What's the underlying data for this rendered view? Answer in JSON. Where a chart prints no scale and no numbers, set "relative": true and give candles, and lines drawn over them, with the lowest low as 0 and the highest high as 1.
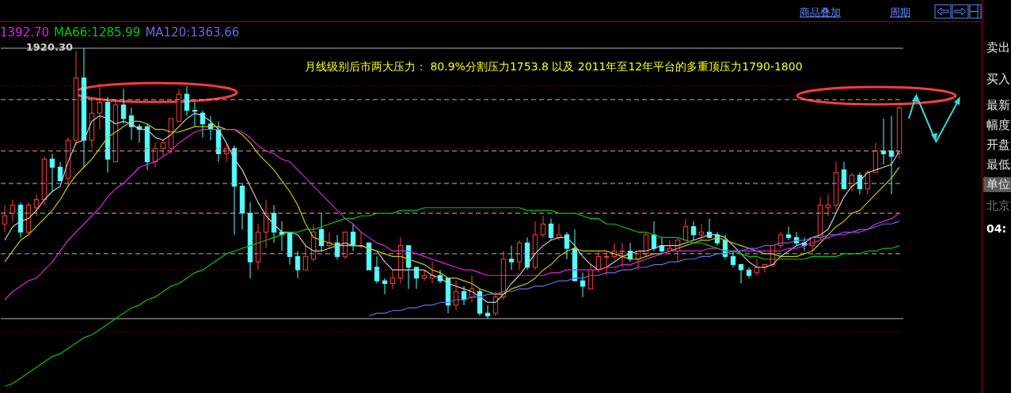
{
  "chart_data": {
    "type": "candlestick",
    "relative": true,
    "tick_labels": false,
    "legend": "top left",
    "colors": [
      "#ff3c3c",
      "#ff3c3c",
      "#54ffff",
      "#ff3c3c",
      "#ff3c3c",
      "#ff3c3c",
      "#54ffff",
      "#54ffff",
      "#ff3c3c",
      "#ff3c3c",
      "#54ffff",
      "#ff3c3c",
      "#ff3c3c",
      "#54ffff",
      "#ff3c3c",
      "#54ffff",
      "#54ffff",
      "#54ffff",
      "#54ffff",
      "#ff3c3c",
      "#ff3c3c",
      "#ff3c3c",
      "#ff3c3c",
      "#54ffff",
      "#54ffff",
      "#54ffff",
      "#54ffff",
      "#54ffff",
      "#ff3c3c",
      "#54ffff",
      "#54ffff",
      "#54ffff",
      "#ff3c3c",
      "#ff3c3c",
      "#54ffff",
      "#54ffff",
      "#54ffff",
      "#54ffff",
      "#ff3c3c",
      "#ff3c3c",
      "#54ffff",
      "#ff3c3c",
      "#54ffff",
      "#ff3c3c",
      "#54ffff",
      "#ff3c3c",
      "#54ffff",
      "#54ffff",
      "#54ffff",
      "#ff3c3c",
      "#ff3c3c",
      "#54ffff",
      "#54ffff",
      "#ff3c3c",
      "#ff3c3c",
      "#54ffff",
      "#54ffff",
      "#ff3c3c",
      "#54ffff",
      "#ff3c3c",
      "#54ffff",
      "#54ffff",
      "#ff3c3c",
      "#ff3c3c",
      "#54ffff",
      "#ff3c3c",
      "#54ffff",
      "#ff3c3c",
      "#ff3c3c",
      "#54ffff",
      "#ff3c3c",
      "#54ffff",
      "#54ffff",
      "#54ffff",
      "#ff3c3c",
      "#ff3c3c",
      "#ff3c3c",
      "#ff3c3c",
      "#ff3c3c",
      "#54ffff",
      "#ff3c3c",
      "#ff3c3c",
      "#54ffff",
      "#54ffff",
      "#ff3c3c",
      "#ff3c3c",
      "#ff3c3c",
      "#54ffff",
      "#ff3c3c",
      "#54ffff",
      "#54ffff",
      "#54ffff",
      "#54ffff",
      "#54ffff",
      "#54ffff",
      "#ff3c3c",
      "#ff3c3c",
      "#ff3c3c",
      "#ff3c3c",
      "#54ffff",
      "#54ffff",
      "#54ffff",
      "#ff3c3c",
      "#ff3c3c",
      "#ff3c3c",
      "#ff3c3c",
      "#54ffff",
      "#ff3c3c",
      "#54ffff",
      "#ff3c3c",
      "#ff3c3c",
      "#54ffff",
      "#54ffff",
      "#ff3c3c"
    ],
    "categories": [
      null,
      null,
      null,
      null,
      null,
      null,
      null,
      null,
      null,
      null,
      null,
      null,
      null,
      null,
      null,
      null,
      null,
      null,
      null,
      null,
      null,
      null,
      null,
      null,
      null,
      null,
      null,
      null,
      null,
      null,
      null,
      null,
      null,
      null,
      null,
      null,
      null,
      null,
      null,
      null,
      null,
      null,
      null,
      null,
      null,
      null,
      null,
      null,
      null,
      null,
      null,
      null,
      null,
      null,
      null,
      null,
      null,
      null,
      null,
      null,
      null,
      null,
      null,
      null,
      null,
      null,
      null,
      null,
      null,
      null,
      null,
      null,
      null,
      null,
      null,
      null,
      null,
      null,
      null,
      null,
      null,
      null,
      null,
      null,
      null,
      null,
      null,
      null,
      null,
      null,
      null,
      null,
      null,
      null,
      null,
      null,
      null,
      null,
      null,
      null,
      null,
      null,
      null,
      null,
      null,
      null,
      null,
      null,
      null,
      null,
      null,
      null,
      null,
      null
    ],
    "ohlc": [
      [
        0.35,
        0.42,
        0.32,
        0.38
      ],
      [
        0.39,
        0.44,
        0.36,
        0.42
      ],
      [
        0.42,
        0.43,
        0.3,
        0.32
      ],
      [
        0.32,
        0.43,
        0.31,
        0.42
      ],
      [
        0.41,
        0.46,
        0.38,
        0.44
      ],
      [
        0.44,
        0.6,
        0.42,
        0.59
      ],
      [
        0.59,
        0.61,
        0.47,
        0.56
      ],
      [
        0.56,
        0.58,
        0.51,
        0.51
      ],
      [
        0.52,
        0.67,
        0.49,
        0.66
      ],
      [
        0.66,
        0.99,
        0.64,
        0.89
      ],
      [
        0.89,
        1,
        0.56,
        0.66
      ],
      [
        0.66,
        0.81,
        0.63,
        0.76
      ],
      [
        0.76,
        0.87,
        0.7,
        0.8
      ],
      [
        0.8,
        0.82,
        0.54,
        0.59
      ],
      [
        0.58,
        0.81,
        0.58,
        0.79
      ],
      [
        0.79,
        0.85,
        0.72,
        0.74
      ],
      [
        0.75,
        0.78,
        0.66,
        0.71
      ],
      [
        0.71,
        0.72,
        0.65,
        0.7
      ],
      [
        0.71,
        0.72,
        0.55,
        0.58
      ],
      [
        0.58,
        0.65,
        0.56,
        0.63
      ],
      [
        0.63,
        0.66,
        0.6,
        0.65
      ],
      [
        0.63,
        0.74,
        0.61,
        0.74
      ],
      [
        0.73,
        0.85,
        0.73,
        0.83
      ],
      [
        0.83,
        0.86,
        0.75,
        0.77
      ],
      [
        0.77,
        0.8,
        0.71,
        0.77
      ],
      [
        0.76,
        0.77,
        0.67,
        0.72
      ],
      [
        0.72,
        0.75,
        0.66,
        0.7
      ],
      [
        0.7,
        0.73,
        0.58,
        0.61
      ],
      [
        0.61,
        0.65,
        0.58,
        0.63
      ],
      [
        0.63,
        0.64,
        0.31,
        0.49
      ],
      [
        0.49,
        0.5,
        0.33,
        0.39
      ],
      [
        0.39,
        0.43,
        0.15,
        0.21
      ],
      [
        0.21,
        0.35,
        0.18,
        0.32
      ],
      [
        0.32,
        0.44,
        0.26,
        0.39
      ],
      [
        0.39,
        0.42,
        0.28,
        0.32
      ],
      [
        0.32,
        0.36,
        0.25,
        0.31
      ],
      [
        0.32,
        0.32,
        0.2,
        0.23
      ],
      [
        0.23,
        0.25,
        0.15,
        0.18
      ],
      [
        0.18,
        0.27,
        0.18,
        0.23
      ],
      [
        0.22,
        0.35,
        0.21,
        0.32
      ],
      [
        0.33,
        0.39,
        0.25,
        0.27
      ],
      [
        0.27,
        0.32,
        0.26,
        0.28
      ],
      [
        0.28,
        0.31,
        0.22,
        0.23
      ],
      [
        0.23,
        0.32,
        0.22,
        0.32
      ],
      [
        0.32,
        0.35,
        0.25,
        0.27
      ],
      [
        0.27,
        0.32,
        0.26,
        0.27
      ],
      [
        0.28,
        0.28,
        0.18,
        0.18
      ],
      [
        0.19,
        0.23,
        0.13,
        0.14
      ],
      [
        0.14,
        0.15,
        0.09,
        0.13
      ],
      [
        0.13,
        0.18,
        0.11,
        0.15
      ],
      [
        0.15,
        0.3,
        0.13,
        0.27
      ],
      [
        0.27,
        0.27,
        0.11,
        0.19
      ],
      [
        0.19,
        0.19,
        0.11,
        0.15
      ],
      [
        0.15,
        0.18,
        0.14,
        0.16
      ],
      [
        0.15,
        0.21,
        0.13,
        0.16
      ],
      [
        0.16,
        0.18,
        0.13,
        0.14
      ],
      [
        0.15,
        0.15,
        0.02,
        0.05
      ],
      [
        0.05,
        0.14,
        0.03,
        0.1
      ],
      [
        0.1,
        0.12,
        0.05,
        0.07
      ],
      [
        0.08,
        0.16,
        0.06,
        0.11
      ],
      [
        0.1,
        0.11,
        0.01,
        0.02
      ],
      [
        0.02,
        0.05,
        0,
        0.01
      ],
      [
        0.02,
        0.1,
        0.01,
        0.08
      ],
      [
        0.08,
        0.25,
        0.07,
        0.22
      ],
      [
        0.22,
        0.27,
        0.18,
        0.21
      ],
      [
        0.21,
        0.29,
        0.18,
        0.28
      ],
      [
        0.28,
        0.3,
        0.18,
        0.19
      ],
      [
        0.19,
        0.36,
        0.18,
        0.31
      ],
      [
        0.31,
        0.38,
        0.3,
        0.35
      ],
      [
        0.35,
        0.37,
        0.29,
        0.3
      ],
      [
        0.3,
        0.35,
        0.29,
        0.31
      ],
      [
        0.31,
        0.32,
        0.22,
        0.26
      ],
      [
        0.26,
        0.33,
        0.14,
        0.14
      ],
      [
        0.14,
        0.17,
        0.08,
        0.12
      ],
      [
        0.11,
        0.2,
        0.11,
        0.18
      ],
      [
        0.18,
        0.25,
        0.17,
        0.23
      ],
      [
        0.23,
        0.25,
        0.16,
        0.23
      ],
      [
        0.23,
        0.28,
        0.22,
        0.25
      ],
      [
        0.25,
        0.28,
        0.19,
        0.25
      ],
      [
        0.25,
        0.28,
        0.21,
        0.22
      ],
      [
        0.22,
        0.25,
        0.18,
        0.25
      ],
      [
        0.24,
        0.32,
        0.23,
        0.31
      ],
      [
        0.31,
        0.36,
        0.25,
        0.26
      ],
      [
        0.27,
        0.3,
        0.24,
        0.25
      ],
      [
        0.25,
        0.29,
        0.25,
        0.26
      ],
      [
        0.25,
        0.3,
        0.21,
        0.29
      ],
      [
        0.29,
        0.37,
        0.29,
        0.34
      ],
      [
        0.34,
        0.36,
        0.29,
        0.31
      ],
      [
        0.31,
        0.35,
        0.29,
        0.32
      ],
      [
        0.32,
        0.37,
        0.3,
        0.3
      ],
      [
        0.31,
        0.32,
        0.27,
        0.28
      ],
      [
        0.29,
        0.31,
        0.22,
        0.23
      ],
      [
        0.23,
        0.25,
        0.19,
        0.2
      ],
      [
        0.2,
        0.2,
        0.13,
        0.18
      ],
      [
        0.18,
        0.19,
        0.15,
        0.16
      ],
      [
        0.17,
        0.22,
        0.16,
        0.19
      ],
      [
        0.19,
        0.2,
        0.17,
        0.2
      ],
      [
        0.2,
        0.27,
        0.19,
        0.27
      ],
      [
        0.27,
        0.32,
        0.26,
        0.31
      ],
      [
        0.31,
        0.34,
        0.29,
        0.3
      ],
      [
        0.3,
        0.32,
        0.27,
        0.28
      ],
      [
        0.28,
        0.3,
        0.25,
        0.27
      ],
      [
        0.27,
        0.3,
        0.25,
        0.3
      ],
      [
        0.3,
        0.45,
        0.29,
        0.42
      ],
      [
        0.41,
        0.46,
        0.38,
        0.42
      ],
      [
        0.42,
        0.58,
        0.4,
        0.54
      ],
      [
        0.55,
        0.58,
        0.48,
        0.48
      ],
      [
        0.49,
        0.54,
        0.47,
        0.53
      ],
      [
        0.53,
        0.54,
        0.46,
        0.48
      ],
      [
        0.48,
        0.55,
        0.46,
        0.54
      ],
      [
        0.54,
        0.65,
        0.54,
        0.62
      ],
      [
        0.62,
        0.74,
        0.57,
        0.61
      ],
      [
        0.62,
        0.75,
        0.46,
        0.6
      ],
      [
        0.61,
        0.8,
        0.59,
        0.78
      ]
    ],
    "series": [
      {
        "type": "line",
        "color": "#c8c8c8",
        "values": [
          0.29,
          0.34,
          0.36,
          0.37,
          0.4,
          0.44,
          0.47,
          0.49,
          0.58,
          0.65,
          0.66,
          0.73,
          0.75,
          0.74,
          0.72,
          0.73,
          0.72,
          0.7,
          0.7,
          0.67,
          0.66,
          0.68,
          0.71,
          0.74,
          0.76,
          0.75,
          0.73,
          0.7,
          0.65,
          0.59,
          0.55,
          0.49,
          0.43,
          0.38,
          0.35,
          0.32,
          0.32,
          0.31,
          0.27,
          0.25,
          0.25,
          0.26,
          0.27,
          0.28,
          0.27,
          0.27,
          0.26,
          0.25,
          0.21,
          0.18,
          0.18,
          0.18,
          0.18,
          0.18,
          0.16,
          0.15,
          0.13,
          0.12,
          0.11,
          0.1,
          0.08,
          0.06,
          0.06,
          0.09,
          0.13,
          0.16,
          0.2,
          0.24,
          0.27,
          0.29,
          0.3,
          0.3,
          0.27,
          0.23,
          0.2,
          0.18,
          0.19,
          0.21,
          0.23,
          0.24,
          0.25,
          0.25,
          0.26,
          0.27,
          0.27,
          0.27,
          0.28,
          0.29,
          0.3,
          0.31,
          0.31,
          0.3,
          0.27,
          0.24,
          0.21,
          0.19,
          0.19,
          0.2,
          0.23,
          0.25,
          0.27,
          0.28,
          0.3,
          0.31,
          0.33,
          0.39,
          0.45,
          0.49,
          0.51,
          0.54,
          0.55,
          0.56,
          0.57,
          0.62
        ]
      },
      {
        "type": "line",
        "color": "#c8c800",
        "values": [
          0.21,
          0.25,
          0.29,
          0.31,
          0.34,
          0.37,
          0.4,
          0.44,
          0.49,
          0.53,
          0.56,
          0.59,
          0.63,
          0.67,
          0.69,
          0.71,
          0.73,
          0.73,
          0.72,
          0.7,
          0.7,
          0.69,
          0.69,
          0.7,
          0.71,
          0.71,
          0.71,
          0.71,
          0.7,
          0.7,
          0.68,
          0.65,
          0.61,
          0.58,
          0.55,
          0.51,
          0.47,
          0.42,
          0.35,
          0.3,
          0.29,
          0.28,
          0.27,
          0.27,
          0.27,
          0.27,
          0.26,
          0.25,
          0.24,
          0.23,
          0.23,
          0.22,
          0.21,
          0.2,
          0.18,
          0.17,
          0.15,
          0.15,
          0.14,
          0.13,
          0.11,
          0.1,
          0.09,
          0.09,
          0.11,
          0.12,
          0.13,
          0.15,
          0.18,
          0.2,
          0.23,
          0.25,
          0.26,
          0.25,
          0.25,
          0.25,
          0.25,
          0.24,
          0.23,
          0.22,
          0.22,
          0.23,
          0.24,
          0.24,
          0.25,
          0.26,
          0.27,
          0.28,
          0.29,
          0.29,
          0.3,
          0.29,
          0.28,
          0.27,
          0.26,
          0.25,
          0.24,
          0.24,
          0.23,
          0.23,
          0.23,
          0.24,
          0.25,
          0.28,
          0.31,
          0.34,
          0.36,
          0.39,
          0.4,
          0.43,
          0.46,
          0.49,
          0.52,
          0.56
        ]
      },
      {
        "type": "line",
        "name": "1392.70",
        "color": "#e020e0",
        "values": [
          0.07,
          0.1,
          0.12,
          0.14,
          0.15,
          0.18,
          0.21,
          0.25,
          0.29,
          0.32,
          0.35,
          0.38,
          0.41,
          0.45,
          0.48,
          0.5,
          0.53,
          0.56,
          0.57,
          0.58,
          0.6,
          0.62,
          0.65,
          0.67,
          0.69,
          0.7,
          0.7,
          0.7,
          0.7,
          0.7,
          0.69,
          0.67,
          0.64,
          0.62,
          0.61,
          0.59,
          0.58,
          0.55,
          0.52,
          0.49,
          0.46,
          0.43,
          0.4,
          0.37,
          0.35,
          0.32,
          0.3,
          0.28,
          0.27,
          0.25,
          0.25,
          0.25,
          0.24,
          0.23,
          0.22,
          0.21,
          0.2,
          0.19,
          0.18,
          0.18,
          0.17,
          0.16,
          0.16,
          0.16,
          0.16,
          0.16,
          0.16,
          0.16,
          0.16,
          0.17,
          0.17,
          0.18,
          0.18,
          0.18,
          0.18,
          0.18,
          0.19,
          0.19,
          0.2,
          0.2,
          0.21,
          0.22,
          0.23,
          0.24,
          0.25,
          0.25,
          0.25,
          0.25,
          0.25,
          0.26,
          0.26,
          0.25,
          0.25,
          0.25,
          0.25,
          0.25,
          0.25,
          0.25,
          0.25,
          0.26,
          0.26,
          0.27,
          0.28,
          0.29,
          0.3,
          0.31,
          0.31,
          0.32,
          0.32,
          0.33,
          0.35,
          0.36,
          0.37,
          0.39
        ]
      },
      {
        "type": "line",
        "name": "MA66:1285.99",
        "color": "#00c800",
        "values": [
          -0.25,
          -0.24,
          -0.22,
          -0.2,
          -0.18,
          -0.16,
          -0.14,
          -0.13,
          -0.11,
          -0.09,
          -0.07,
          -0.06,
          -0.04,
          -0.02,
          0.0,
          0.02,
          0.04,
          0.05,
          0.07,
          0.08,
          0.1,
          0.12,
          0.13,
          0.15,
          0.17,
          0.18,
          0.2,
          0.22,
          0.24,
          0.25,
          0.26,
          0.27,
          0.28,
          0.29,
          0.3,
          0.31,
          0.32,
          0.32,
          0.33,
          0.33,
          0.34,
          0.35,
          0.36,
          0.37,
          0.37,
          0.38,
          0.38,
          0.39,
          0.39,
          0.39,
          0.4,
          0.4,
          0.4,
          0.41,
          0.41,
          0.41,
          0.41,
          0.41,
          0.41,
          0.41,
          0.41,
          0.41,
          0.41,
          0.41,
          0.41,
          0.41,
          0.4,
          0.4,
          0.4,
          0.4,
          0.39,
          0.39,
          0.39,
          0.38,
          0.37,
          0.37,
          0.35,
          0.35,
          0.34,
          0.33,
          0.32,
          0.32,
          0.31,
          0.3,
          0.3,
          0.3,
          0.29,
          0.28,
          0.28,
          0.27,
          0.26,
          0.25,
          0.25,
          0.24,
          0.23,
          0.23,
          0.22,
          0.22,
          0.22,
          0.22,
          0.22,
          0.22,
          0.23,
          0.23,
          0.23,
          0.23,
          0.24,
          0.24,
          0.24,
          0.25,
          0.25,
          0.26,
          0.26,
          0.27
        ]
      },
      {
        "type": "line",
        "name": "MA120:1363.66",
        "color": "#6868e0",
        "values": [
          null,
          null,
          null,
          null,
          null,
          null,
          null,
          null,
          null,
          null,
          null,
          null,
          null,
          null,
          null,
          null,
          null,
          null,
          null,
          null,
          null,
          null,
          null,
          null,
          null,
          null,
          null,
          null,
          null,
          null,
          null,
          null,
          null,
          null,
          null,
          null,
          null,
          null,
          null,
          null,
          null,
          null,
          null,
          null,
          null,
          null,
          0.01,
          0.02,
          0.02,
          0.03,
          0.03,
          0.04,
          0.04,
          0.05,
          0.05,
          0.06,
          0.06,
          0.07,
          0.07,
          0.08,
          0.08,
          0.09,
          0.09,
          0.1,
          0.1,
          0.11,
          0.11,
          0.12,
          0.12,
          0.13,
          0.14,
          0.14,
          0.15,
          0.15,
          0.16,
          0.16,
          0.17,
          0.17,
          0.18,
          0.18,
          0.19,
          0.19,
          0.2,
          0.2,
          0.21,
          0.21,
          0.22,
          0.22,
          0.23,
          0.23,
          0.24,
          0.24,
          0.25,
          0.25,
          0.26,
          0.26,
          0.27,
          0.27,
          0.28,
          0.28,
          0.29,
          0.29,
          0.3,
          0.3,
          0.31,
          0.31,
          0.32,
          0.32,
          0.33,
          0.33,
          0.34,
          0.35,
          0.35,
          0.36
        ]
      }
    ],
    "ref_lines": [
      {
        "axis": "y",
        "value": 1,
        "color": "#b4b4b4",
        "line_style": "solid"
      },
      {
        "axis": "y",
        "value": 0,
        "color": "#b4b4b4",
        "line_style": "solid"
      },
      {
        "axis": "y",
        "value": 0.81,
        "color": "#b4b4b4",
        "line_style": "dashed"
      },
      {
        "axis": "y",
        "value": 0.62,
        "color": "#b4b4b4",
        "line_style": "dashed"
      },
      {
        "axis": "y",
        "value": 0.5,
        "color": "#b4b4b4",
        "line_style": "dashed"
      },
      {
        "axis": "y",
        "value": 0.39,
        "color": "#b4b4b4",
        "line_style": "dashed"
      },
      {
        "axis": "y",
        "value": 0.24,
        "color": "#b4b4b4",
        "line_style": "dashed"
      },
      {
        "axis": "y",
        "value": 0.86,
        "color": "#a00000",
        "line_style": "dotted"
      },
      {
        "axis": "y",
        "value": 0.63,
        "color": "#a00000",
        "line_style": "dotted"
      },
      {
        "axis": "y",
        "value": 0.4,
        "color": "#a00000",
        "line_style": "dotted"
      },
      {
        "axis": "y",
        "value": 0.18,
        "color": "#a00000",
        "line_style": "dotted"
      },
      {
        "axis": "y",
        "value": -0.05,
        "color": "#a00000",
        "line_style": "dotted"
      }
    ],
    "annotations": [
      "月线级别后市两大压力： 80.9%分割压力1753.8 以及 2011年至12年平台的多重顶压力1790-1800",
      {
        "text": "1920.30",
        "y": 1
      },
      "商品叠加",
      "周期",
      "卖出",
      "买入",
      "最新",
      "幅度",
      "开盘",
      "最低",
      "单位",
      "北京",
      "04:"
    ]
  }
}
